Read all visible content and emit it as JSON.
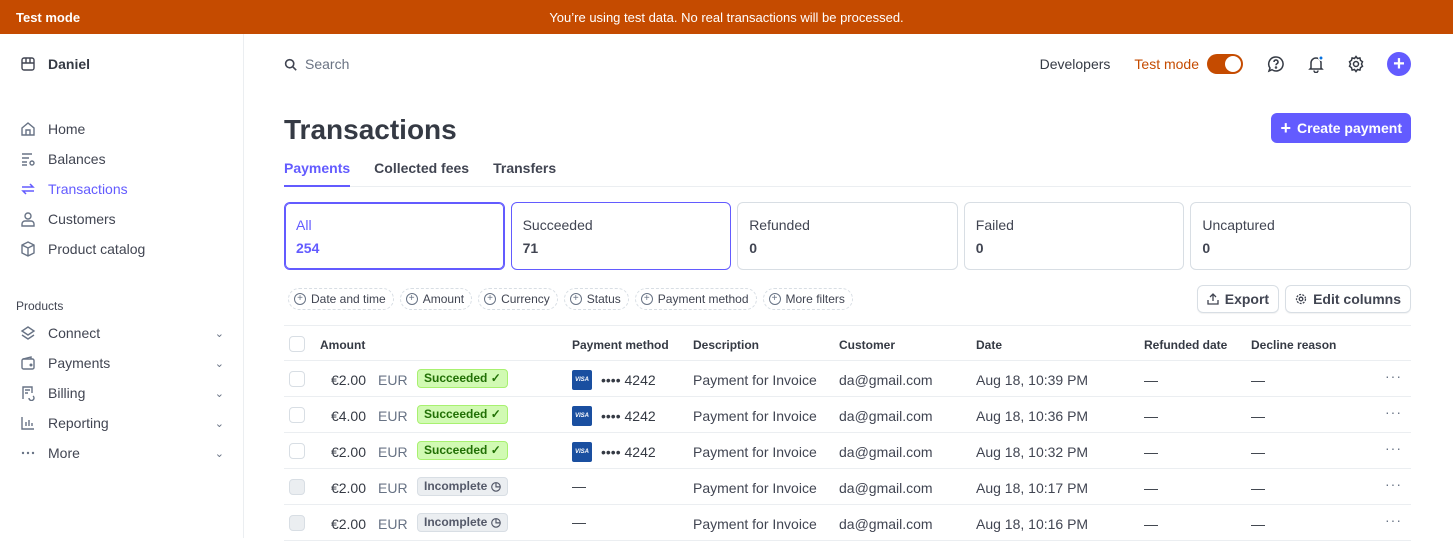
{
  "banner": {
    "label": "Test mode",
    "message": "You’re using test data. No real transactions will be processed.",
    "color": "#c54b00"
  },
  "sidebar": {
    "account": "Daniel",
    "items": [
      {
        "label": "Home",
        "icon": "home-icon"
      },
      {
        "label": "Balances",
        "icon": "balances-icon"
      },
      {
        "label": "Transactions",
        "icon": "transactions-icon",
        "active": true
      },
      {
        "label": "Customers",
        "icon": "user-icon"
      },
      {
        "label": "Product catalog",
        "icon": "box-icon"
      }
    ],
    "section": "Products",
    "products": [
      {
        "label": "Connect",
        "icon": "layers-icon"
      },
      {
        "label": "Payments",
        "icon": "wallet-icon"
      },
      {
        "label": "Billing",
        "icon": "billing-icon"
      },
      {
        "label": "Reporting",
        "icon": "chart-icon"
      },
      {
        "label": "More",
        "icon": "more-icon"
      }
    ]
  },
  "header": {
    "search_placeholder": "Search",
    "developers": "Developers",
    "test_mode": "Test mode",
    "test_mode_on": true
  },
  "page": {
    "title": "Transactions",
    "create": "Create payment",
    "accent": "#635bff",
    "tabs": [
      "Payments",
      "Collected fees",
      "Transfers"
    ],
    "cards": [
      {
        "label": "All",
        "count": "254"
      },
      {
        "label": "Succeeded",
        "count": "71"
      },
      {
        "label": "Refunded",
        "count": "0"
      },
      {
        "label": "Failed",
        "count": "0"
      },
      {
        "label": "Uncaptured",
        "count": "0"
      }
    ],
    "filters": [
      "Date and time",
      "Amount",
      "Currency",
      "Status",
      "Payment method",
      "More filters"
    ],
    "export": "Export",
    "edit_columns": "Edit columns"
  },
  "table": {
    "columns": [
      "Amount",
      "Payment method",
      "Description",
      "Customer",
      "Date",
      "Refunded date",
      "Decline reason"
    ],
    "rows": [
      {
        "amount": "€2.00",
        "currency": "EUR",
        "status": "Succeeded",
        "pm": "•••• 4242",
        "desc": "Payment for Invoice",
        "customer": "da@gmail.com",
        "date": "Aug 18, 10:39 PM",
        "refunded": "—",
        "decline": "—"
      },
      {
        "amount": "€4.00",
        "currency": "EUR",
        "status": "Succeeded",
        "pm": "•••• 4242",
        "desc": "Payment for Invoice",
        "customer": "da@gmail.com",
        "date": "Aug 18, 10:36 PM",
        "refunded": "—",
        "decline": "—"
      },
      {
        "amount": "€2.00",
        "currency": "EUR",
        "status": "Succeeded",
        "pm": "•••• 4242",
        "desc": "Payment for Invoice",
        "customer": "da@gmail.com",
        "date": "Aug 18, 10:32 PM",
        "refunded": "—",
        "decline": "—"
      },
      {
        "amount": "€2.00",
        "currency": "EUR",
        "status": "Incomplete",
        "pm": "—",
        "desc": "Payment for Invoice",
        "customer": "da@gmail.com",
        "date": "Aug 18, 10:17 PM",
        "refunded": "—",
        "decline": "—"
      },
      {
        "amount": "€2.00",
        "currency": "EUR",
        "status": "Incomplete",
        "pm": "—",
        "desc": "Payment for Invoice",
        "customer": "da@gmail.com",
        "date": "Aug 18, 10:16 PM",
        "refunded": "—",
        "decline": "—"
      }
    ]
  }
}
